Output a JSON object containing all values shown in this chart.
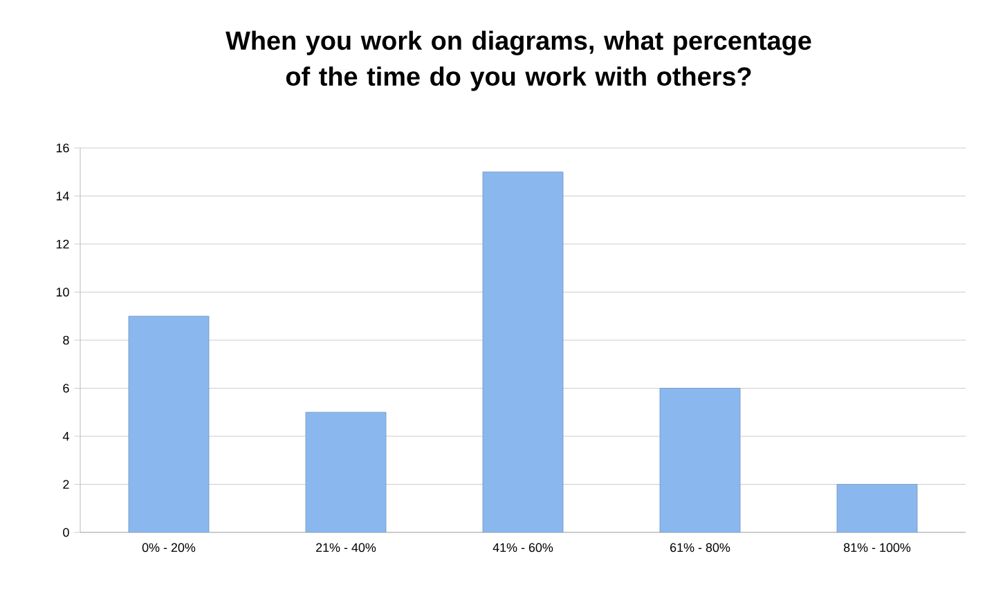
{
  "chart_data": {
    "type": "bar",
    "title": "When you work on diagrams, what percentage of the time do you work with others?",
    "categories": [
      "0% - 20%",
      "21% - 40%",
      "41% - 60%",
      "61% - 80%",
      "81% - 100%"
    ],
    "values": [
      9,
      5,
      15,
      6,
      2
    ],
    "color": "#8ab8ee",
    "ylim": [
      0,
      16
    ],
    "yticks": [
      0,
      2,
      4,
      6,
      8,
      10,
      12,
      14,
      16
    ],
    "grid": "y"
  }
}
